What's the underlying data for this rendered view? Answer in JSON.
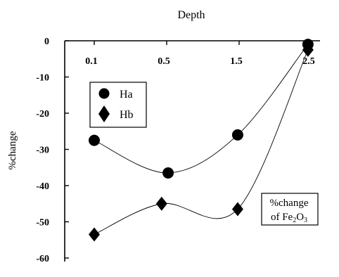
{
  "chart_data": {
    "type": "scatter",
    "title": "Depth",
    "ylabel": "%change",
    "xlabel": "",
    "x_ticks": [
      "0.1",
      "0.5",
      "1.5",
      "2.5"
    ],
    "y_ticks": [
      "0",
      "-10",
      "-20",
      "-30",
      "-40",
      "-50",
      "-60"
    ],
    "ylim": [
      -60,
      0
    ],
    "x_axis_position": "top",
    "grid": false,
    "legend_position": "upper-left",
    "series": [
      {
        "name": "Ha",
        "marker": "circle",
        "x_values": [
          0.1,
          0.5,
          1.5,
          2.5
        ],
        "values": [
          -27.5,
          -36.5,
          -26,
          -1
        ],
        "x_pos": [
          0,
          1.02,
          1.98,
          2.95
        ]
      },
      {
        "name": "Hb",
        "marker": "diamond",
        "x_values": [
          0.1,
          0.5,
          1.5,
          2.5
        ],
        "values": [
          -53.5,
          -45,
          -46.5,
          -2.5
        ],
        "x_pos": [
          0,
          0.93,
          1.98,
          2.95
        ]
      }
    ],
    "annotation": {
      "line1": "%change",
      "line2_prefix": "of Fe",
      "line2_sub1": "2",
      "line2_mid": "O",
      "line2_sub2": "3"
    }
  }
}
